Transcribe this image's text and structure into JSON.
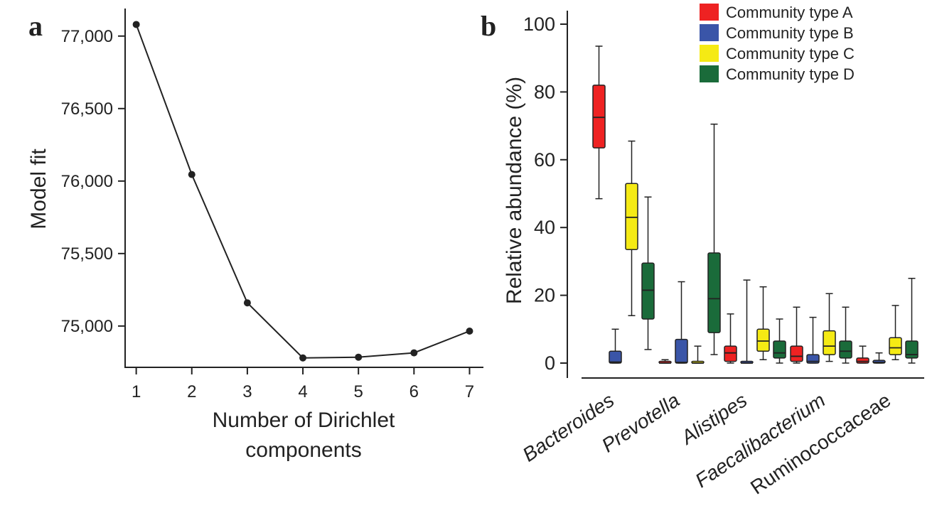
{
  "chart_data": [
    {
      "panel_label": "a",
      "type": "line",
      "xlabel_lines": [
        "Number of Dirichlet",
        "components"
      ],
      "ylabel": "Model fit",
      "x": [
        1,
        2,
        3,
        4,
        5,
        6,
        7
      ],
      "y": [
        77080,
        76045,
        75160,
        74780,
        74785,
        74815,
        74965
      ],
      "xticks": [
        "1",
        "2",
        "3",
        "4",
        "5",
        "6",
        "7"
      ],
      "yticks": [
        {
          "value": 75000,
          "label": "75,000"
        },
        {
          "value": 75500,
          "label": "75,500"
        },
        {
          "value": 76000,
          "label": "76,000"
        },
        {
          "value": 76500,
          "label": "76,500"
        },
        {
          "value": 77000,
          "label": "77,000"
        }
      ],
      "xlim": [
        0.8,
        7.25
      ],
      "ylim": [
        74715,
        77190
      ]
    },
    {
      "panel_label": "b",
      "type": "boxplot",
      "ylabel": "Relative abundance (%)",
      "ylim": [
        0,
        100
      ],
      "yticks": [
        "0",
        "20",
        "40",
        "60",
        "80",
        "100"
      ],
      "categories": [
        {
          "name": "Bacteroides",
          "italic": true
        },
        {
          "name": "Prevotella",
          "italic": true
        },
        {
          "name": "Alistipes",
          "italic": true
        },
        {
          "name": "Faecalibacterium",
          "italic": true
        },
        {
          "name": "Ruminococcaceae",
          "italic": false
        }
      ],
      "series": [
        {
          "name": "Community type A",
          "color": "#ee2222"
        },
        {
          "name": "Community type B",
          "color": "#3a55a8"
        },
        {
          "name": "Community type C",
          "color": "#f5ea14"
        },
        {
          "name": "Community type D",
          "color": "#1a6b3a"
        }
      ],
      "legend_position": "top-right",
      "boxes": [
        [
          {
            "min": 48.5,
            "q1": 63.5,
            "median": 72.5,
            "q3": 82,
            "max": 93.5
          },
          {
            "min": 0,
            "q1": 0,
            "median": 0.3,
            "q3": 3.5,
            "max": 10
          },
          {
            "min": 14,
            "q1": 33.5,
            "median": 43,
            "q3": 53,
            "max": 65.5
          },
          {
            "min": 4,
            "q1": 13,
            "median": 21.5,
            "q3": 29.5,
            "max": 49
          }
        ],
        [
          {
            "min": 0,
            "q1": 0,
            "median": 0,
            "q3": 0.3,
            "max": 1
          },
          {
            "min": 0,
            "q1": 0,
            "median": 0.2,
            "q3": 7,
            "max": 24
          },
          {
            "min": 0,
            "q1": 0,
            "median": 0,
            "q3": 0.3,
            "max": 5
          },
          {
            "min": 2.5,
            "q1": 9,
            "median": 19,
            "q3": 32.5,
            "max": 70.5
          }
        ],
        [
          {
            "min": 0,
            "q1": 0.5,
            "median": 3,
            "q3": 5,
            "max": 14.5
          },
          {
            "min": 0,
            "q1": 0,
            "median": 0,
            "q3": 0,
            "max": 24.5
          },
          {
            "min": 1,
            "q1": 3.5,
            "median": 6.5,
            "q3": 10,
            "max": 22.5
          },
          {
            "min": 0,
            "q1": 1.5,
            "median": 3,
            "q3": 6.5,
            "max": 13
          }
        ],
        [
          {
            "min": 0,
            "q1": 0.5,
            "median": 2,
            "q3": 5,
            "max": 16.5
          },
          {
            "min": 0,
            "q1": 0,
            "median": 0.5,
            "q3": 2.5,
            "max": 13.5
          },
          {
            "min": 0.5,
            "q1": 2.5,
            "median": 5,
            "q3": 9.5,
            "max": 20.5
          },
          {
            "min": 0,
            "q1": 1.5,
            "median": 3.5,
            "q3": 6.5,
            "max": 16.5
          }
        ],
        [
          {
            "min": 0,
            "q1": 0,
            "median": 0.5,
            "q3": 1.5,
            "max": 5
          },
          {
            "min": 0,
            "q1": 0,
            "median": 0.2,
            "q3": 0.8,
            "max": 3
          },
          {
            "min": 1,
            "q1": 2.5,
            "median": 4.5,
            "q3": 7.5,
            "max": 17
          },
          {
            "min": 0,
            "q1": 1.5,
            "median": 2.5,
            "q3": 6.5,
            "max": 25
          }
        ]
      ]
    }
  ]
}
